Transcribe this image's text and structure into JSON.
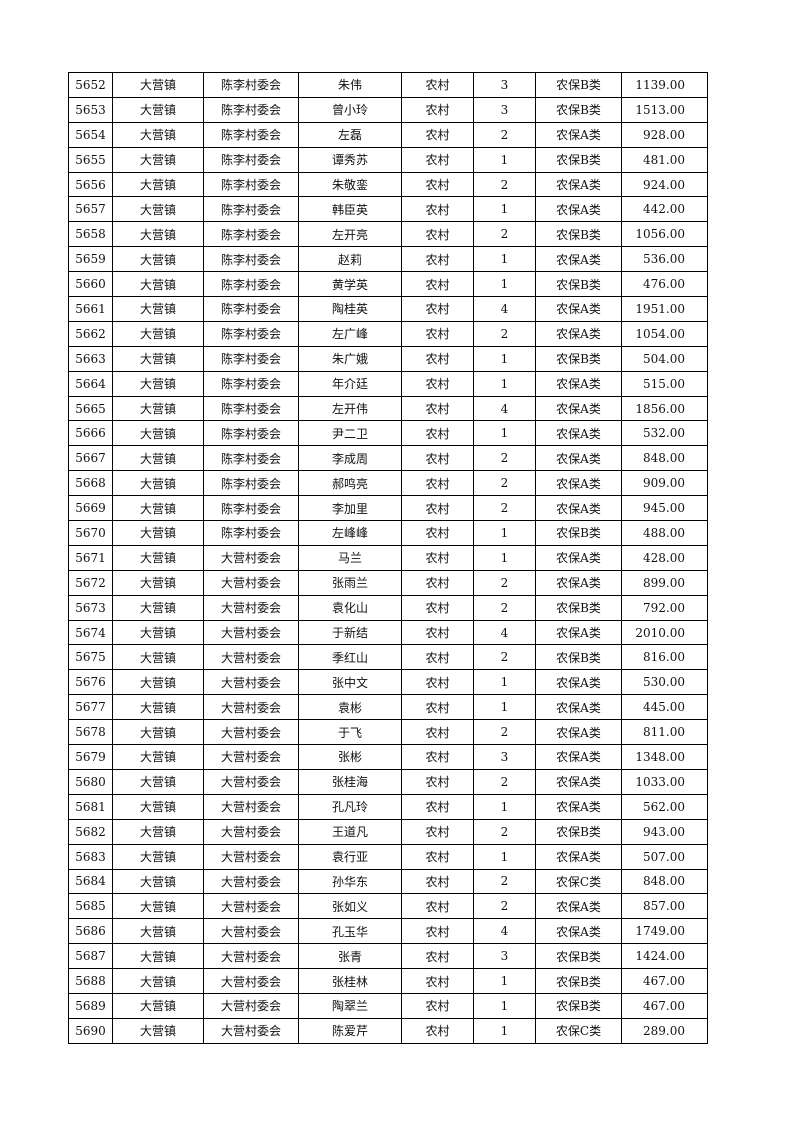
{
  "table": {
    "rows": [
      [
        "5652",
        "大营镇",
        "陈李村委会",
        "朱伟",
        "农村",
        "3",
        "农保B类",
        "1139.00"
      ],
      [
        "5653",
        "大营镇",
        "陈李村委会",
        "曾小玲",
        "农村",
        "3",
        "农保B类",
        "1513.00"
      ],
      [
        "5654",
        "大营镇",
        "陈李村委会",
        "左磊",
        "农村",
        "2",
        "农保A类",
        "928.00"
      ],
      [
        "5655",
        "大营镇",
        "陈李村委会",
        "谭秀苏",
        "农村",
        "1",
        "农保B类",
        "481.00"
      ],
      [
        "5656",
        "大营镇",
        "陈李村委会",
        "朱敬銮",
        "农村",
        "2",
        "农保A类",
        "924.00"
      ],
      [
        "5657",
        "大营镇",
        "陈李村委会",
        "韩臣英",
        "农村",
        "1",
        "农保A类",
        "442.00"
      ],
      [
        "5658",
        "大营镇",
        "陈李村委会",
        "左开亮",
        "农村",
        "2",
        "农保B类",
        "1056.00"
      ],
      [
        "5659",
        "大营镇",
        "陈李村委会",
        "赵莉",
        "农村",
        "1",
        "农保A类",
        "536.00"
      ],
      [
        "5660",
        "大营镇",
        "陈李村委会",
        "黄学英",
        "农村",
        "1",
        "农保B类",
        "476.00"
      ],
      [
        "5661",
        "大营镇",
        "陈李村委会",
        "陶桂英",
        "农村",
        "4",
        "农保A类",
        "1951.00"
      ],
      [
        "5662",
        "大营镇",
        "陈李村委会",
        "左广峰",
        "农村",
        "2",
        "农保A类",
        "1054.00"
      ],
      [
        "5663",
        "大营镇",
        "陈李村委会",
        "朱广娥",
        "农村",
        "1",
        "农保B类",
        "504.00"
      ],
      [
        "5664",
        "大营镇",
        "陈李村委会",
        "年介廷",
        "农村",
        "1",
        "农保A类",
        "515.00"
      ],
      [
        "5665",
        "大营镇",
        "陈李村委会",
        "左开伟",
        "农村",
        "4",
        "农保A类",
        "1856.00"
      ],
      [
        "5666",
        "大营镇",
        "陈李村委会",
        "尹二卫",
        "农村",
        "1",
        "农保A类",
        "532.00"
      ],
      [
        "5667",
        "大营镇",
        "陈李村委会",
        "李成周",
        "农村",
        "2",
        "农保A类",
        "848.00"
      ],
      [
        "5668",
        "大营镇",
        "陈李村委会",
        "郝鸣亮",
        "农村",
        "2",
        "农保A类",
        "909.00"
      ],
      [
        "5669",
        "大营镇",
        "陈李村委会",
        "李加里",
        "农村",
        "2",
        "农保A类",
        "945.00"
      ],
      [
        "5670",
        "大营镇",
        "陈李村委会",
        "左峰峰",
        "农村",
        "1",
        "农保B类",
        "488.00"
      ],
      [
        "5671",
        "大营镇",
        "大营村委会",
        "马兰",
        "农村",
        "1",
        "农保A类",
        "428.00"
      ],
      [
        "5672",
        "大营镇",
        "大营村委会",
        "张雨兰",
        "农村",
        "2",
        "农保A类",
        "899.00"
      ],
      [
        "5673",
        "大营镇",
        "大营村委会",
        "袁化山",
        "农村",
        "2",
        "农保B类",
        "792.00"
      ],
      [
        "5674",
        "大营镇",
        "大营村委会",
        "于新结",
        "农村",
        "4",
        "农保A类",
        "2010.00"
      ],
      [
        "5675",
        "大营镇",
        "大营村委会",
        "季红山",
        "农村",
        "2",
        "农保B类",
        "816.00"
      ],
      [
        "5676",
        "大营镇",
        "大营村委会",
        "张中文",
        "农村",
        "1",
        "农保A类",
        "530.00"
      ],
      [
        "5677",
        "大营镇",
        "大营村委会",
        "袁彬",
        "农村",
        "1",
        "农保A类",
        "445.00"
      ],
      [
        "5678",
        "大营镇",
        "大营村委会",
        "于飞",
        "农村",
        "2",
        "农保A类",
        "811.00"
      ],
      [
        "5679",
        "大营镇",
        "大营村委会",
        "张彬",
        "农村",
        "3",
        "农保A类",
        "1348.00"
      ],
      [
        "5680",
        "大营镇",
        "大营村委会",
        "张桂海",
        "农村",
        "2",
        "农保A类",
        "1033.00"
      ],
      [
        "5681",
        "大营镇",
        "大营村委会",
        "孔凡玲",
        "农村",
        "1",
        "农保A类",
        "562.00"
      ],
      [
        "5682",
        "大营镇",
        "大营村委会",
        "王道凡",
        "农村",
        "2",
        "农保B类",
        "943.00"
      ],
      [
        "5683",
        "大营镇",
        "大营村委会",
        "袁行亚",
        "农村",
        "1",
        "农保A类",
        "507.00"
      ],
      [
        "5684",
        "大营镇",
        "大营村委会",
        "孙华东",
        "农村",
        "2",
        "农保C类",
        "848.00"
      ],
      [
        "5685",
        "大营镇",
        "大营村委会",
        "张如义",
        "农村",
        "2",
        "农保A类",
        "857.00"
      ],
      [
        "5686",
        "大营镇",
        "大营村委会",
        "孔玉华",
        "农村",
        "4",
        "农保A类",
        "1749.00"
      ],
      [
        "5687",
        "大营镇",
        "大营村委会",
        "张青",
        "农村",
        "3",
        "农保B类",
        "1424.00"
      ],
      [
        "5688",
        "大营镇",
        "大营村委会",
        "张桂林",
        "农村",
        "1",
        "农保B类",
        "467.00"
      ],
      [
        "5689",
        "大营镇",
        "大营村委会",
        "陶翠兰",
        "农村",
        "1",
        "农保B类",
        "467.00"
      ],
      [
        "5690",
        "大营镇",
        "大营村委会",
        "陈爱芹",
        "农村",
        "1",
        "农保C类",
        "289.00"
      ]
    ]
  }
}
